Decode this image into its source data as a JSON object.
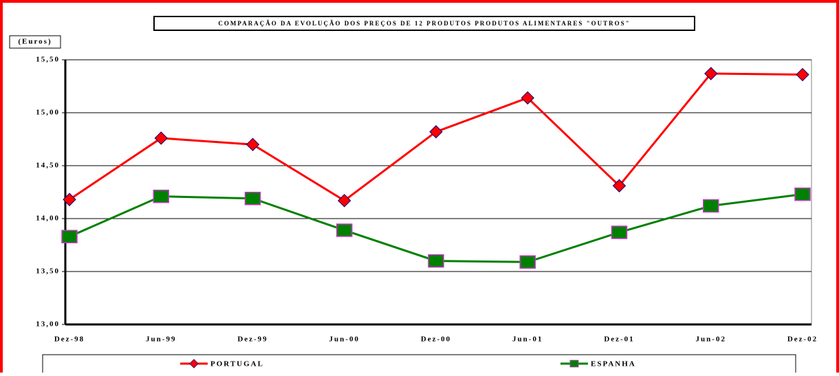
{
  "chart_data": {
    "type": "line",
    "title": "COMPARAÇÃO DA EVOLUÇÃO DOS PREÇOS DE 12 PRODUTOS PRODUTOS ALIMENTARES \"OUTROS\"",
    "y_label": "(Euros)",
    "categories": [
      "Dez-98",
      "Jun-99",
      "Dez-99",
      "Jun-00",
      "Dez-00",
      "Jun-01",
      "Dez-01",
      "Jun-02",
      "Dez-02"
    ],
    "series": [
      {
        "name": "PORTUGAL",
        "color": "#ff0000",
        "marker_color": "#ff0000",
        "marker": "diamond",
        "values": [
          14.18,
          14.76,
          14.7,
          14.17,
          14.82,
          15.14,
          14.31,
          15.37,
          15.36
        ]
      },
      {
        "name": "ESPANHA",
        "color": "#008000",
        "marker_color": "#008000",
        "marker": "square",
        "values": [
          13.83,
          14.21,
          14.19,
          13.89,
          13.6,
          13.59,
          13.87,
          14.12,
          14.23
        ]
      }
    ],
    "ylim": [
      13.0,
      15.5
    ],
    "yticks": [
      {
        "value": 13.0,
        "label": "13,00"
      },
      {
        "value": 13.5,
        "label": "13,50"
      },
      {
        "value": 14.0,
        "label": "14,00"
      },
      {
        "value": 14.5,
        "label": "14,50"
      },
      {
        "value": 15.0,
        "label": "15,00"
      },
      {
        "value": 15.5,
        "label": "15,50"
      }
    ],
    "grid": true
  }
}
